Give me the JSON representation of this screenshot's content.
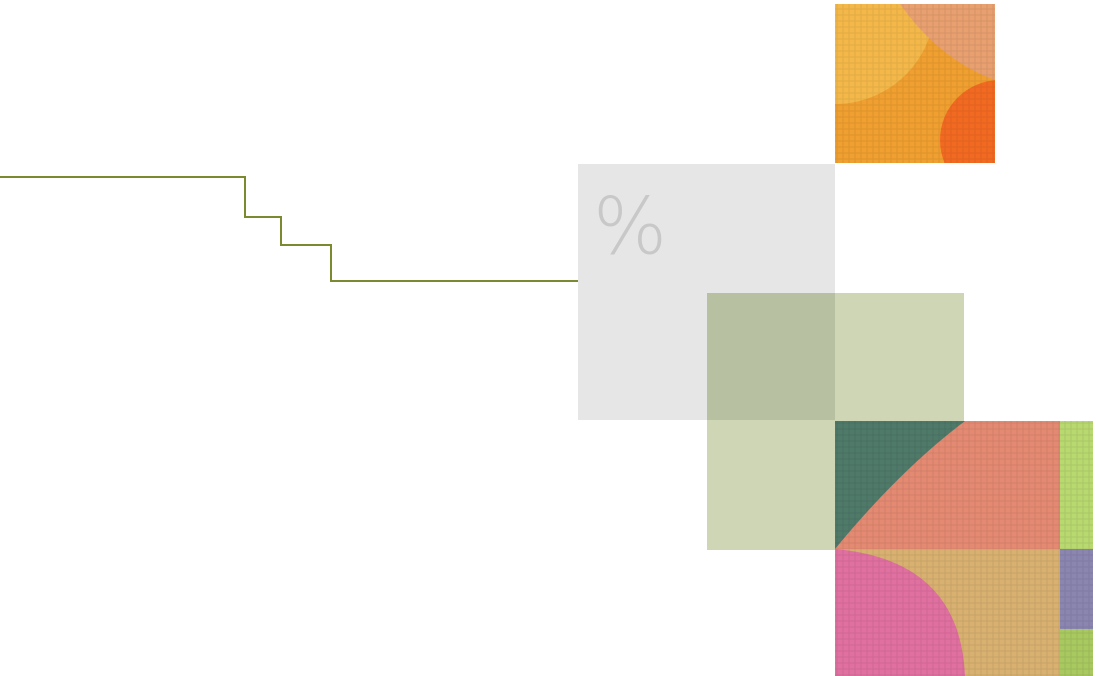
{
  "symbol": "%"
}
